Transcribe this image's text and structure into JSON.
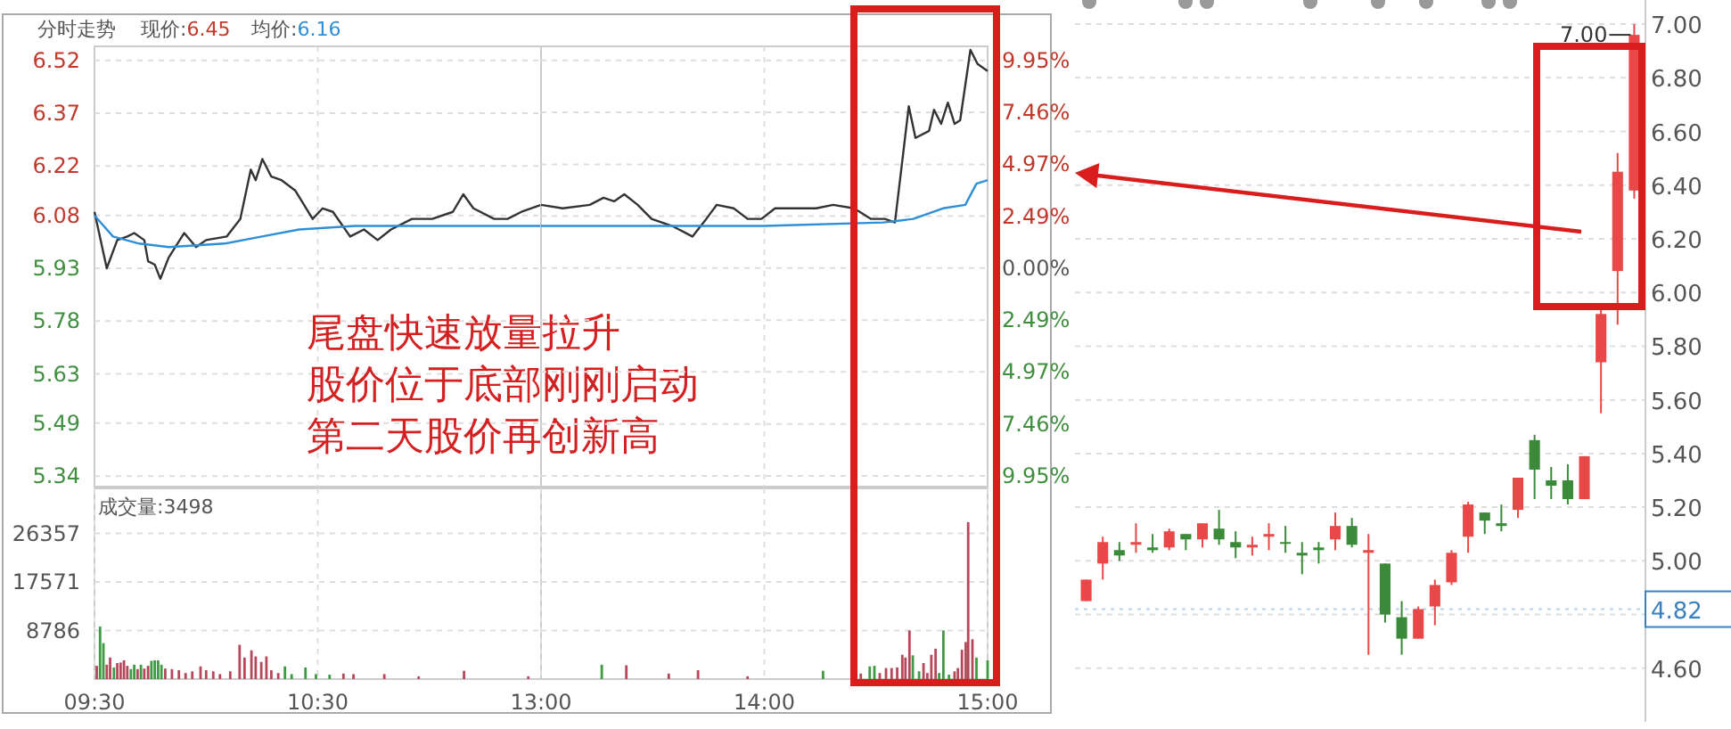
{
  "chart_data": [
    {
      "type": "line",
      "title": "分时走势",
      "annotations": [
        "现价:6.45",
        "均价:6.16",
        "尾盘快速放量拉升",
        "股价位于底部刚刚启动",
        "第二天股价再创新高"
      ],
      "xlim": [
        9.5,
        11.5
      ],
      "xticks": [
        {
          "value": 10.5,
          "label": null
        }
      ],
      "ylim": [
        5.31,
        6.56
      ],
      "yticks": [
        5.34,
        5.49,
        5.63,
        5.78,
        5.93,
        6.08,
        6.22,
        6.37,
        6.52
      ],
      "grid": true,
      "tick_labels": "y",
      "series": [
        {
          "color": "#333333",
          "x": [
            9.5,
            9.555,
            9.602,
            9.647,
            9.678,
            9.723,
            9.74,
            9.77,
            9.795,
            9.832,
            9.902,
            9.955,
            10.0,
            10.092,
            10.153,
            10.2,
            10.222,
            10.252,
            10.292,
            10.338,
            10.4,
            10.477,
            10.522,
            10.568,
            10.645,
            10.707,
            10.768,
            10.828,
            10.922,
            11.013,
            11.105,
            11.152,
            11.197,
            11.29,
            11.35,
            11.412,
            11.5
          ],
          "values": [
            6.09,
            5.93,
            6.01,
            6.02,
            6.03,
            6.01,
            5.95,
            5.94,
            5.9,
            5.96,
            6.03,
            5.99,
            6.01,
            6.02,
            6.07,
            6.21,
            6.18,
            6.24,
            6.19,
            6.18,
            6.15,
            6.07,
            6.1,
            6.09,
            6.02,
            6.04,
            6.01,
            6.04,
            6.07,
            6.07,
            6.09,
            6.14,
            6.1,
            6.07,
            6.07,
            6.09,
            6.11
          ]
        },
        {
          "color": "#2f8fd6",
          "x": [
            9.5,
            9.583,
            9.7,
            9.833,
            10.083,
            10.25,
            10.417,
            10.667,
            11.5
          ],
          "values": [
            6.08,
            6.02,
            6.0,
            5.99,
            6.0,
            6.02,
            6.04,
            6.05,
            6.05
          ]
        }
      ]
    },
    {
      "type": "line",
      "xlim": [
        13,
        15
      ],
      "xticks": [
        {
          "value": 14,
          "label": null
        }
      ],
      "ylim": [
        5.31,
        6.56
      ],
      "y2lim": [
        -10.46,
        10.62
      ],
      "y2ticks": [
        {
          "value": -9.95,
          "label": "9.95%"
        },
        {
          "value": -7.46,
          "label": "7.46%"
        },
        {
          "value": -4.97,
          "label": "4.97%"
        },
        {
          "value": -2.49,
          "label": "2.49%"
        },
        {
          "value": 0,
          "label": "0.00%"
        },
        {
          "value": 2.49,
          "label": "2.49%"
        },
        {
          "value": 4.97,
          "label": "4.97%"
        },
        {
          "value": 7.46,
          "label": "7.46%"
        },
        {
          "value": 9.95,
          "label": "9.95%"
        }
      ],
      "grid": true,
      "tick_labels": "y",
      "series": [
        {
          "color": "#333333",
          "x": [
            13.0,
            13.097,
            13.218,
            13.28,
            13.327,
            13.373,
            13.433,
            13.495,
            13.587,
            13.678,
            13.74,
            13.787,
            13.863,
            13.925,
            13.987,
            14.048,
            14.14,
            14.232,
            14.308,
            14.402,
            14.478,
            14.54,
            14.585,
            14.647,
            14.677,
            14.738,
            14.76,
            14.792,
            14.822,
            14.852,
            14.877,
            14.923,
            14.955,
            15.0
          ],
          "values": [
            6.11,
            6.1,
            6.11,
            6.13,
            6.12,
            6.14,
            6.11,
            6.07,
            6.05,
            6.02,
            6.07,
            6.11,
            6.1,
            6.07,
            6.07,
            6.1,
            6.1,
            6.1,
            6.11,
            6.1,
            6.07,
            6.07,
            6.06,
            6.39,
            6.3,
            6.32,
            6.38,
            6.34,
            6.4,
            6.34,
            6.35,
            6.55,
            6.51,
            6.49
          ]
        },
        {
          "color": "#2f8fd6",
          "x": [
            13.0,
            14.0,
            14.533,
            14.667,
            14.8,
            14.9,
            14.95,
            15.0
          ],
          "values": [
            6.05,
            6.05,
            6.06,
            6.07,
            6.1,
            6.11,
            6.17,
            6.18
          ]
        }
      ]
    },
    {
      "type": "bar",
      "title": "成交量:3498",
      "xlim": [
        9.5,
        11.5
      ],
      "xticks": [
        {
          "value": 9.5,
          "label": "09:30"
        },
        {
          "value": 10.5,
          "label": "10:30"
        }
      ],
      "ylim": [
        0,
        34500
      ],
      "yticks": [
        8786,
        17571,
        26357
      ],
      "grid": true,
      "x": [
        9.51,
        9.525,
        9.54,
        9.555,
        9.57,
        9.587,
        9.602,
        9.617,
        9.632,
        9.647,
        9.663,
        9.678,
        9.693,
        9.708,
        9.723,
        9.74,
        9.755,
        9.77,
        9.785,
        9.8,
        9.817,
        9.847,
        9.878,
        9.908,
        9.938,
        9.975,
        10.0,
        10.032,
        10.062,
        10.108,
        10.15,
        10.172,
        10.203,
        10.222,
        10.247,
        10.27,
        10.292,
        10.323,
        10.353,
        10.383,
        10.445,
        10.492,
        10.553,
        10.615,
        10.66,
        10.798,
        10.952,
        11.155,
        11.443
      ],
      "values": [
        2400,
        9500,
        6500,
        2600,
        3900,
        2100,
        2900,
        3000,
        3400,
        2400,
        1800,
        2600,
        1800,
        2600,
        1900,
        2400,
        3300,
        3400,
        3400,
        2600,
        1900,
        1800,
        1600,
        1100,
        1400,
        2300,
        1600,
        1400,
        900,
        1400,
        6200,
        3900,
        5200,
        4100,
        3100,
        4100,
        1600,
        1100,
        2300,
        900,
        2100,
        900,
        800,
        1000,
        900,
        900,
        500,
        1500,
        500
      ],
      "colors": [
        "#b5485a",
        "#3f9a44",
        "#3f9a44",
        "#b5485a",
        "#b5485a",
        "#3f9a44",
        "#b5485a",
        "#b5485a",
        "#b5485a",
        "#b5485a",
        "#3f9a44",
        "#3f9a44",
        "#b5485a",
        "#3f9a44",
        "#b5485a",
        "#b5485a",
        "#3f9a44",
        "#3f9a44",
        "#3f9a44",
        "#3f9a44",
        "#b5485a",
        "#b5485a",
        "#b5485a",
        "#b5485a",
        "#b5485a",
        "#b5485a",
        "#b5485a",
        "#b5485a",
        "#b5485a",
        "#b5485a",
        "#b5485a",
        "#b5485a",
        "#b5485a",
        "#b5485a",
        "#b5485a",
        "#b5485a",
        "#b5485a",
        "#b5485a",
        "#3f9a44",
        "#3f9a44",
        "#3f9a44",
        "#3f9a44",
        "#3f9a44",
        "#b5485a",
        "#b5485a",
        "#b5485a",
        "#b5485a",
        "#b5485a",
        "#b5485a"
      ]
    },
    {
      "type": "bar",
      "xlim": [
        13,
        15
      ],
      "xticks": [
        {
          "value": 13,
          "label": "13:00"
        },
        {
          "value": 14,
          "label": "14:00"
        },
        {
          "value": 15,
          "label": "15:00"
        }
      ],
      "ylim": [
        0,
        34500
      ],
      "yticks": [
        8786,
        17571,
        26357
      ],
      "grid": true,
      "tick_labels": "x",
      "x": [
        13.272,
        13.382,
        13.572,
        13.703,
        13.925,
        14.263,
        14.432,
        14.472,
        14.493,
        14.517,
        14.545,
        14.57,
        14.595,
        14.618,
        14.632,
        14.65,
        14.665,
        14.693,
        14.713,
        14.73,
        14.748,
        14.767,
        14.783,
        14.802,
        14.827,
        14.852,
        14.867,
        14.885,
        14.902,
        14.913,
        14.932,
        14.95,
        15.0
      ],
      "values": [
        2600,
        2500,
        1000,
        1600,
        500,
        1500,
        1000,
        2300,
        2400,
        1100,
        2000,
        2000,
        2100,
        4400,
        3900,
        8800,
        4300,
        1400,
        2900,
        1100,
        4400,
        5500,
        1100,
        8800,
        800,
        1400,
        2000,
        5300,
        6700,
        28400,
        7200,
        3900,
        3400
      ],
      "colors": [
        "#3f9a44",
        "#b5485a",
        "#b5485a",
        "#b5485a",
        "#b5485a",
        "#3f9a44",
        "#b5485a",
        "#3f9a44",
        "#3f9a44",
        "#b5485a",
        "#b5485a",
        "#b5485a",
        "#b5485a",
        "#b5485a",
        "#b5485a",
        "#b5485a",
        "#3f9a44",
        "#3f9a44",
        "#b5485a",
        "#b5485a",
        "#b5485a",
        "#b5485a",
        "#3f9a44",
        "#3f9a44",
        "#3f9a44",
        "#b5485a",
        "#b5485a",
        "#b5485a",
        "#b5485a",
        "#b5485a",
        "#b5485a",
        "#3f9a44",
        "#3f9a44"
      ]
    },
    {
      "type": "candlestick",
      "categories": [
        null,
        null,
        null,
        null,
        null,
        null,
        null,
        null,
        null,
        null,
        null,
        null,
        null,
        null,
        null,
        null,
        null,
        null,
        null,
        null,
        null,
        null,
        null,
        null,
        null,
        null,
        null,
        null,
        null,
        null,
        null,
        null,
        null,
        null
      ],
      "ylim": [
        4.4,
        7.09
      ],
      "yticks": [
        {
          "value": 4.6,
          "label": "4.60"
        },
        {
          "value": 4.8,
          "label": null
        },
        {
          "value": 5.0,
          "label": "5.00"
        },
        {
          "value": 5.2,
          "label": "5.20"
        },
        {
          "value": 5.4,
          "label": "5.40"
        },
        {
          "value": 5.6,
          "label": "5.60"
        },
        {
          "value": 5.8,
          "label": "5.80"
        },
        {
          "value": 6.0,
          "label": "6.00"
        },
        {
          "value": 6.2,
          "label": "6.20"
        },
        {
          "value": 6.4,
          "label": "6.40"
        },
        {
          "value": 6.6,
          "label": "6.60"
        },
        {
          "value": 6.8,
          "label": "6.80"
        },
        {
          "value": 7.0,
          "label": "7.00"
        }
      ],
      "grid": "y",
      "ref_lines": [
        {
          "axis": "y",
          "value": 4.82,
          "label": "4.82",
          "color": "#3a7fc0"
        }
      ],
      "annotations": [
        "7.00"
      ],
      "ohlc": [
        [
          4.85,
          4.93,
          4.85,
          4.93
        ],
        [
          4.99,
          5.09,
          4.93,
          5.07
        ],
        [
          5.04,
          5.07,
          5.0,
          5.02
        ],
        [
          5.06,
          5.14,
          5.03,
          5.07
        ],
        [
          5.05,
          5.1,
          5.03,
          5.04
        ],
        [
          5.05,
          5.12,
          5.04,
          5.11
        ],
        [
          5.1,
          5.1,
          5.04,
          5.08
        ],
        [
          5.08,
          5.14,
          5.05,
          5.14
        ],
        [
          5.12,
          5.19,
          5.06,
          5.08
        ],
        [
          5.07,
          5.11,
          5.01,
          5.05
        ],
        [
          5.05,
          5.09,
          5.02,
          5.06
        ],
        [
          5.09,
          5.14,
          5.04,
          5.1
        ],
        [
          5.07,
          5.13,
          5.03,
          5.07
        ],
        [
          5.03,
          5.07,
          4.95,
          5.02
        ],
        [
          5.05,
          5.07,
          4.99,
          5.04
        ],
        [
          5.08,
          5.18,
          5.04,
          5.13
        ],
        [
          5.13,
          5.16,
          5.05,
          5.06
        ],
        [
          5.03,
          5.1,
          4.65,
          5.04
        ],
        [
          4.99,
          4.99,
          4.77,
          4.8
        ],
        [
          4.79,
          4.85,
          4.65,
          4.71
        ],
        [
          4.71,
          4.83,
          4.71,
          4.82
        ],
        [
          4.83,
          4.93,
          4.76,
          4.91
        ],
        [
          4.92,
          5.04,
          4.91,
          5.03
        ],
        [
          5.09,
          5.22,
          5.03,
          5.21
        ],
        [
          5.18,
          5.18,
          5.1,
          5.15
        ],
        [
          5.14,
          5.21,
          5.11,
          5.13
        ],
        [
          5.19,
          5.31,
          5.16,
          5.31
        ],
        [
          5.45,
          5.47,
          5.23,
          5.34
        ],
        [
          5.3,
          5.35,
          5.23,
          5.28
        ],
        [
          5.3,
          5.36,
          5.21,
          5.23
        ],
        [
          5.23,
          5.39,
          5.23,
          5.39
        ],
        [
          5.74,
          5.94,
          5.55,
          5.92
        ],
        [
          6.08,
          6.52,
          5.88,
          6.45
        ],
        [
          6.38,
          7.0,
          6.35,
          6.96
        ]
      ],
      "colors": [
        "#e84848",
        "#e84848",
        "#3a8a3a",
        "#e84848",
        "#3a8a3a",
        "#e84848",
        "#3a8a3a",
        "#e84848",
        "#3a8a3a",
        "#3a8a3a",
        "#e84848",
        "#e84848",
        "#3a8a3a",
        "#3a8a3a",
        "#3a8a3a",
        "#e84848",
        "#3a8a3a",
        "#e84848",
        "#3a8a3a",
        "#3a8a3a",
        "#e84848",
        "#e84848",
        "#e84848",
        "#e84848",
        "#3a8a3a",
        "#3a8a3a",
        "#e84848",
        "#3a8a3a",
        "#3a8a3a",
        "#3a8a3a",
        "#e84848",
        "#e84848",
        "#e84848",
        "#e84848"
      ]
    }
  ]
}
